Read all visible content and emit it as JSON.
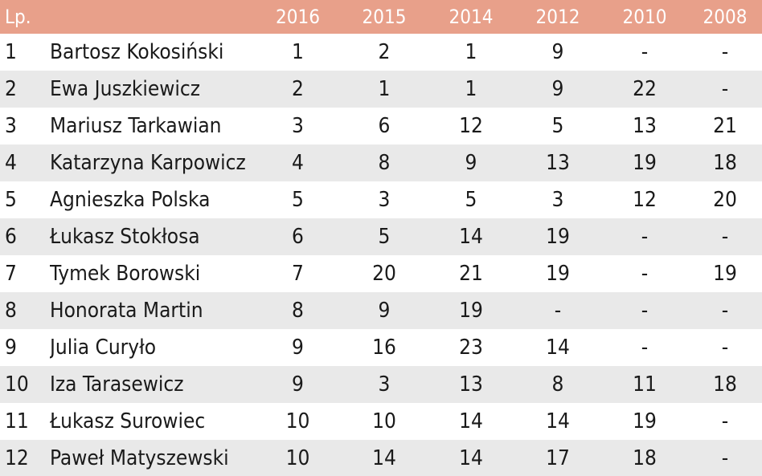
{
  "colors": {
    "header_bg": "#e8a08a",
    "header_text": "#ffffff",
    "row_even_bg": "#ffffff",
    "row_odd_bg": "#e9e9e9",
    "text": "#1a1a1a"
  },
  "header": {
    "lp": "Lp.",
    "name": "",
    "years": [
      "2016",
      "2015",
      "2014",
      "2012",
      "2010",
      "2008"
    ]
  },
  "rows": [
    {
      "lp": "1",
      "name": "Bartosz Kokosiński",
      "values": [
        "1",
        "2",
        "1",
        "9",
        "-",
        "-"
      ]
    },
    {
      "lp": "2",
      "name": "Ewa Juszkiewicz",
      "values": [
        "2",
        "1",
        "1",
        "9",
        "22",
        "-"
      ]
    },
    {
      "lp": "3",
      "name": "Mariusz Tarkawian",
      "values": [
        "3",
        "6",
        "12",
        "5",
        "13",
        "21"
      ]
    },
    {
      "lp": "4",
      "name": "Katarzyna Karpowicz",
      "values": [
        "4",
        "8",
        "9",
        "13",
        "19",
        "18"
      ]
    },
    {
      "lp": "5",
      "name": "Agnieszka Polska",
      "values": [
        "5",
        "3",
        "5",
        "3",
        "12",
        "20"
      ]
    },
    {
      "lp": "6",
      "name": "Łukasz Stokłosa",
      "values": [
        "6",
        "5",
        "14",
        "19",
        "-",
        "-"
      ]
    },
    {
      "lp": "7",
      "name": "Tymek Borowski",
      "values": [
        "7",
        "20",
        "21",
        "19",
        "-",
        "19"
      ]
    },
    {
      "lp": "8",
      "name": "Honorata Martin",
      "values": [
        "8",
        "9",
        "19",
        "-",
        "-",
        "-"
      ]
    },
    {
      "lp": "9",
      "name": "Julia Curyło",
      "values": [
        "9",
        "16",
        "23",
        "14",
        "-",
        "-"
      ]
    },
    {
      "lp": "10",
      "name": "Iza Tarasewicz",
      "values": [
        "9",
        "3",
        "13",
        "8",
        "11",
        "18"
      ]
    },
    {
      "lp": "11",
      "name": "Łukasz Surowiec",
      "values": [
        "10",
        "10",
        "14",
        "14",
        "19",
        "-"
      ]
    },
    {
      "lp": "12",
      "name": "Paweł Matyszewski",
      "values": [
        "10",
        "14",
        "14",
        "17",
        "18",
        "-"
      ]
    }
  ]
}
